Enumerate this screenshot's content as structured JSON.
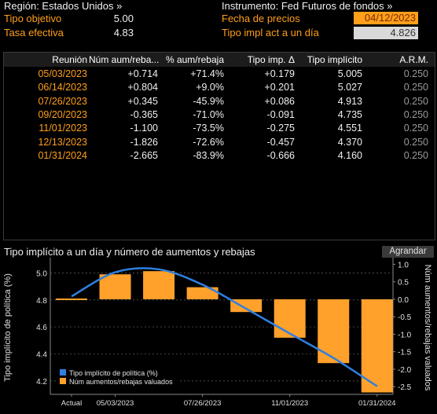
{
  "header": {
    "region_label": "Región: Estados Unidos »",
    "instrument_label": "Instrumento: Fed Futuros de fondos »",
    "target_rate_label": "Tipo objetivo",
    "target_rate_value": "5.00",
    "effective_rate_label": "Tasa efectiva",
    "effective_rate_value": "4.83",
    "price_date_label": "Fecha de precios",
    "price_date_value": "04/12/2023",
    "implied_rate_label": "Tipo impl act a un día",
    "implied_rate_value": "4.826"
  },
  "table": {
    "columns": [
      "Reunión",
      "Núm aum/reba...",
      "% aum/rebaja",
      "Tipo imp. Δ",
      "Tipo implícito",
      "A.R.M."
    ],
    "rows": [
      {
        "date": "05/03/2023",
        "num": "+0.714",
        "pct": "+71.4%",
        "delta": "+0.179",
        "implied": "5.005",
        "arm": "0.250"
      },
      {
        "date": "06/14/2023",
        "num": "+0.804",
        "pct": "+9.0%",
        "delta": "+0.201",
        "implied": "5.027",
        "arm": "0.250"
      },
      {
        "date": "07/26/2023",
        "num": "+0.345",
        "pct": "-45.9%",
        "delta": "+0.086",
        "implied": "4.913",
        "arm": "0.250"
      },
      {
        "date": "09/20/2023",
        "num": "-0.365",
        "pct": "-71.0%",
        "delta": "-0.091",
        "implied": "4.735",
        "arm": "0.250"
      },
      {
        "date": "11/01/2023",
        "num": "-1.100",
        "pct": "-73.5%",
        "delta": "-0.275",
        "implied": "4.551",
        "arm": "0.250"
      },
      {
        "date": "12/13/2023",
        "num": "-1.826",
        "pct": "-72.6%",
        "delta": "-0.457",
        "implied": "4.370",
        "arm": "0.250"
      },
      {
        "date": "01/31/2024",
        "num": "-2.665",
        "pct": "-83.9%",
        "delta": "-0.666",
        "implied": "4.160",
        "arm": "0.250"
      }
    ]
  },
  "chart_section": {
    "title": "Tipo implícito a un día y número de aumentos y rebajas",
    "expand_label": "Agrandar"
  },
  "chart_data": {
    "type": "bar",
    "categories": [
      "Actual",
      "05/03/2023",
      "06/14/2023",
      "07/26/2023",
      "09/20/2023",
      "11/01/2023",
      "12/13/2023",
      "01/31/2024"
    ],
    "x_tick_labels": [
      "Actual",
      "05/03/2023",
      "07/26/2023",
      "11/01/2023",
      "01/31/2024"
    ],
    "series": [
      {
        "name": "Tipo implícito de política (%)",
        "kind": "line",
        "axis": "left",
        "color": "#2f7fe0",
        "values": [
          4.826,
          5.005,
          5.027,
          4.913,
          4.735,
          4.551,
          4.37,
          4.16
        ]
      },
      {
        "name": "Núm aumentos/rebajas valuados",
        "kind": "bar",
        "axis": "right",
        "color": "#ffa12b",
        "values": [
          0,
          0.714,
          0.804,
          0.345,
          -0.365,
          -1.1,
          -1.826,
          -2.665
        ]
      }
    ],
    "ylabel_left": "Tipo implícito de política (%)",
    "ylabel_right": "Núm aumentos/rebajas valuados",
    "ylim_left": [
      4.1,
      5.09
    ],
    "yticks_left": [
      "4.2",
      "4.4",
      "4.6",
      "4.8",
      "5.0"
    ],
    "ylim_right": [
      -2.72,
      1.1
    ],
    "yticks_right": [
      "1.0",
      "0.5",
      "0.0",
      "-0.5",
      "-1.0",
      "-1.5",
      "-2.0",
      "-2.5"
    ],
    "legend_position": "bottom-left",
    "grid": "horizontal dashed"
  }
}
